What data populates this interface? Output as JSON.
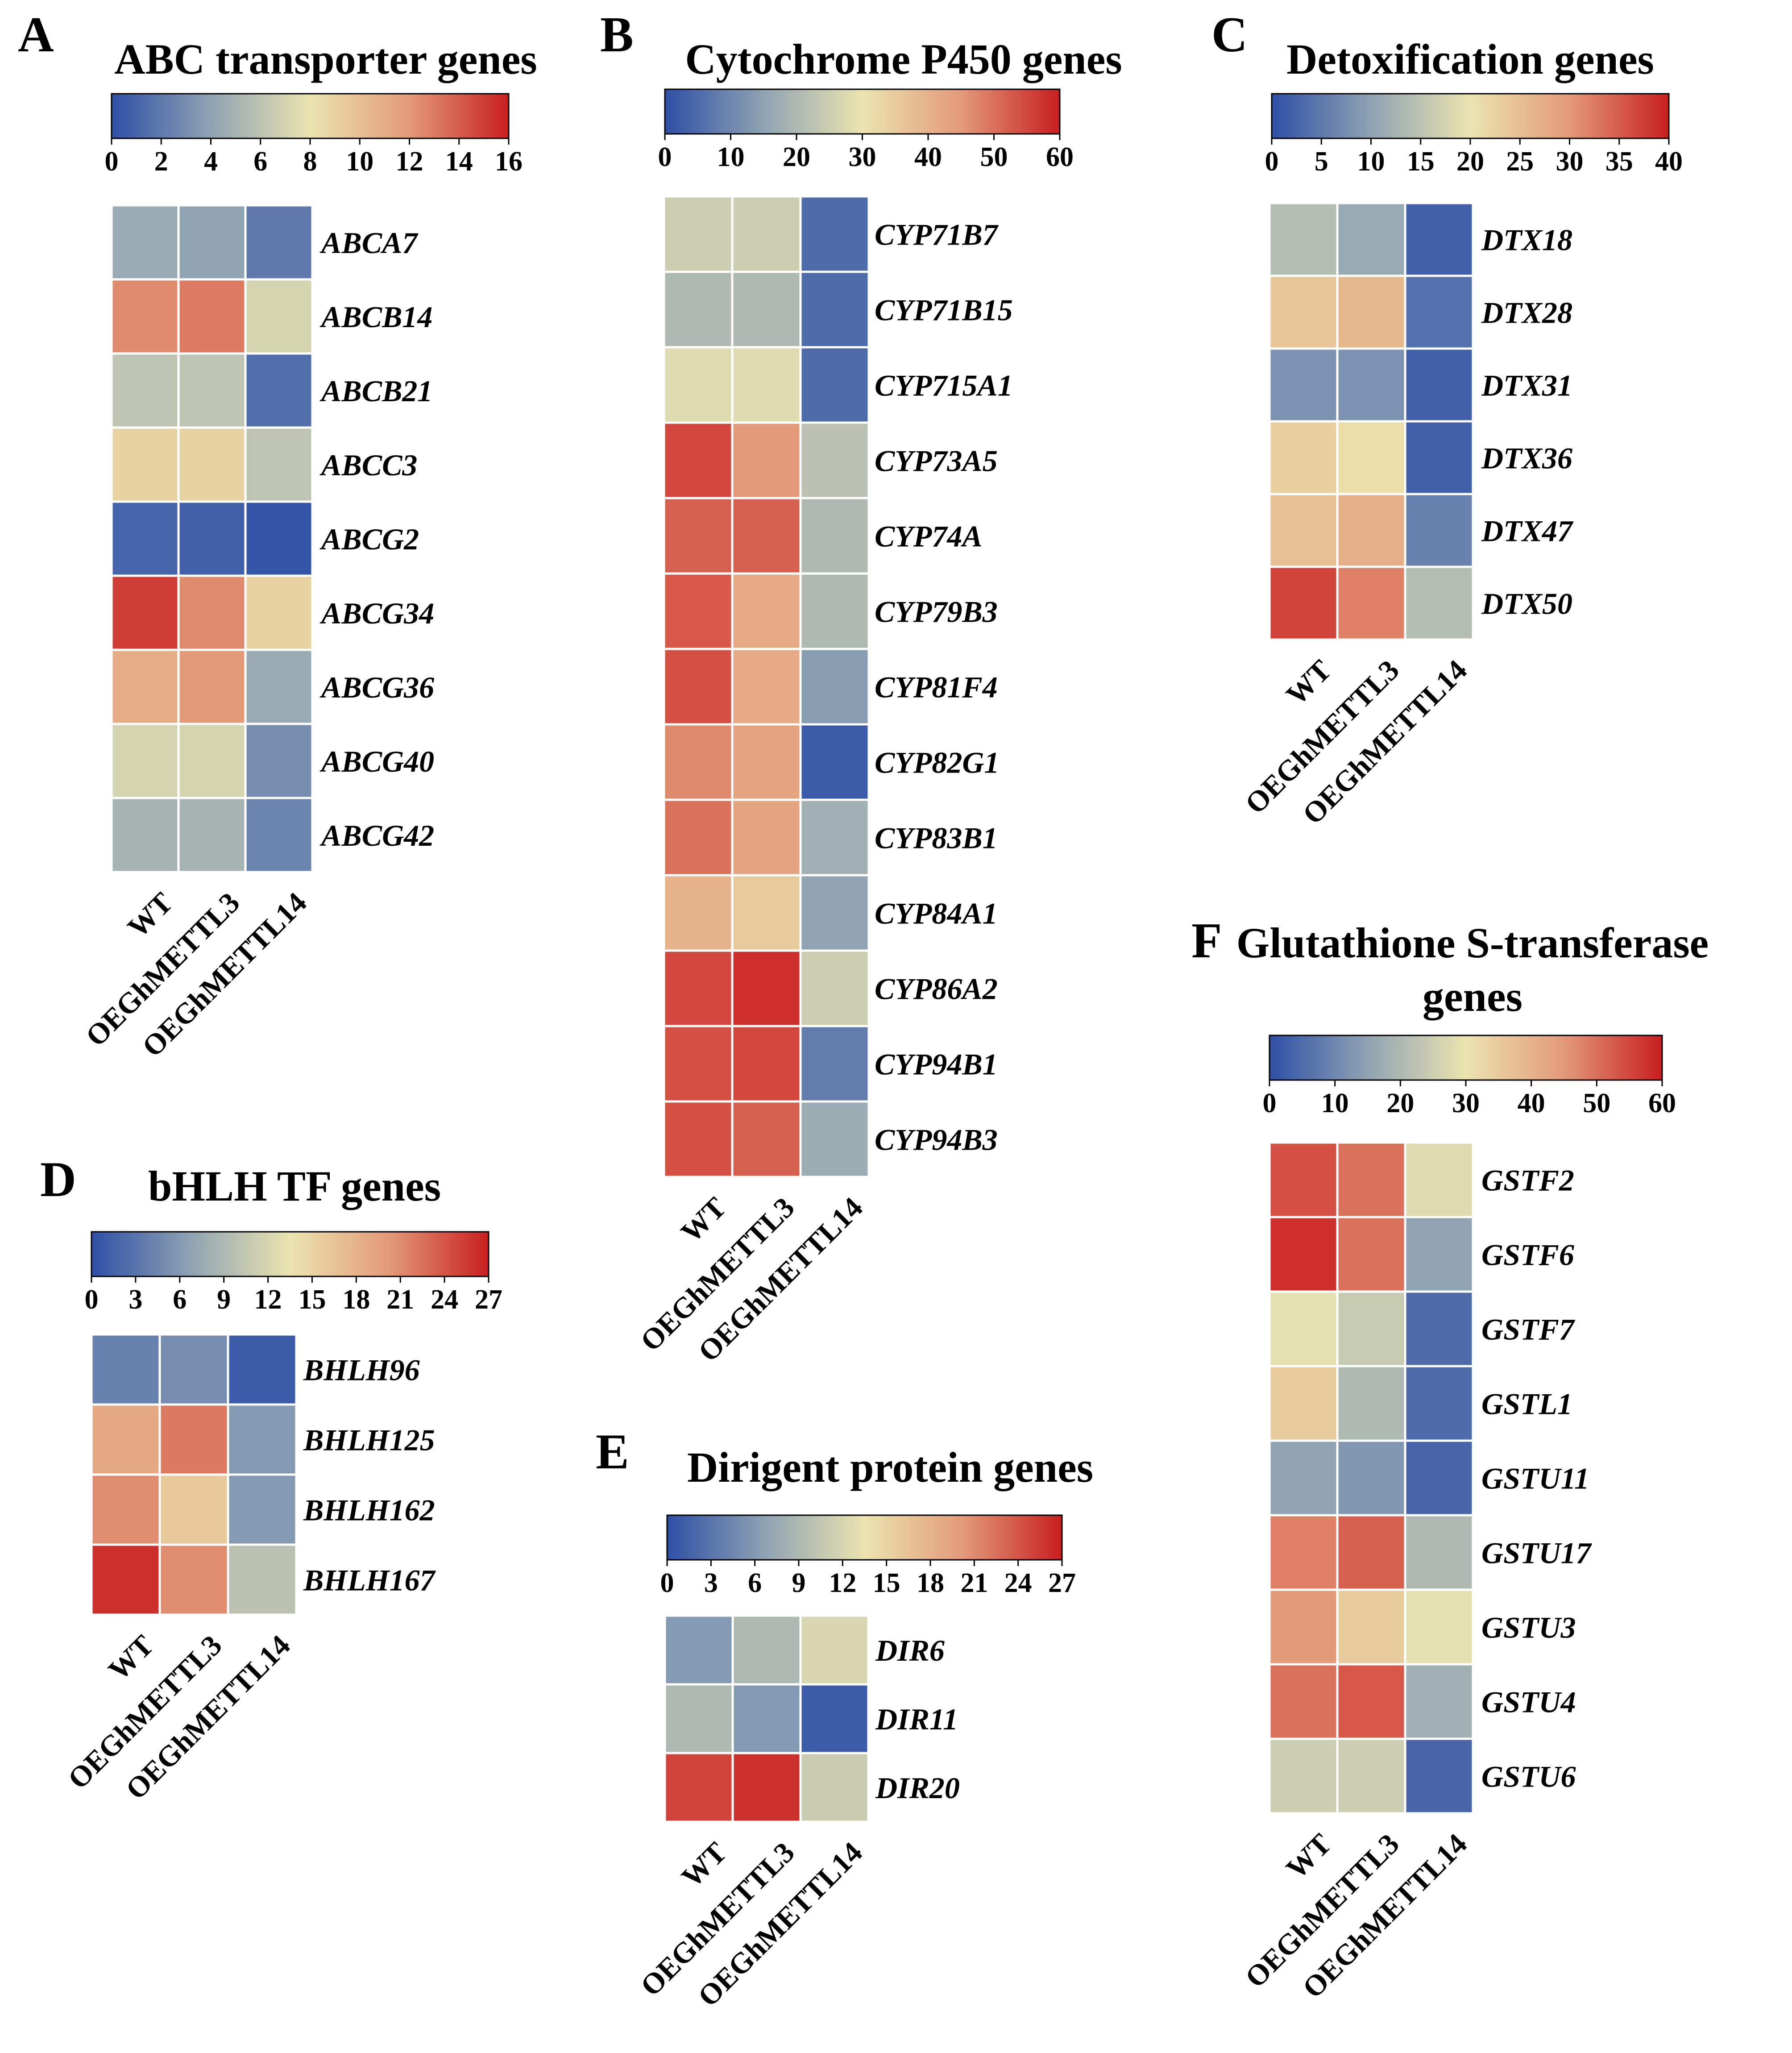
{
  "figure": {
    "sample_names": [
      "WT",
      "OEGhMETTL3",
      "OEGhMETTL14"
    ],
    "colormap": {
      "name": "blue-white-red",
      "stops": [
        "#2e4fa6",
        "#8fa3b3",
        "#ebe4b0",
        "#e39a78",
        "#c81e20"
      ]
    }
  },
  "chart_data": [
    {
      "panel": "A",
      "type": "heatmap",
      "title": "ABC transporter genes",
      "vmin": 0,
      "vmax": 16,
      "ticks": [
        0,
        2,
        4,
        6,
        8,
        10,
        12,
        14,
        16
      ],
      "columns": [
        "WT",
        "OEGhMETTL3",
        "OEGhMETTL14"
      ],
      "rows": [
        {
          "gene": "ABCA7",
          "values": [
            4.5,
            4.0,
            2.0
          ]
        },
        {
          "gene": "ABCB14",
          "values": [
            12.5,
            13.0,
            7.0
          ]
        },
        {
          "gene": "ABCB21",
          "values": [
            6.0,
            6.0,
            1.5
          ]
        },
        {
          "gene": "ABCC3",
          "values": [
            9.0,
            9.0,
            6.0
          ]
        },
        {
          "gene": "ABCG2",
          "values": [
            1.0,
            0.8,
            0.3
          ]
        },
        {
          "gene": "ABCG34",
          "values": [
            15.0,
            12.5,
            9.0
          ]
        },
        {
          "gene": "ABCG36",
          "values": [
            11.0,
            12.0,
            4.5
          ]
        },
        {
          "gene": "ABCG40",
          "values": [
            7.0,
            7.0,
            3.0
          ]
        },
        {
          "gene": "ABCG42",
          "values": [
            5.0,
            5.0,
            2.5
          ]
        }
      ]
    },
    {
      "panel": "B",
      "type": "heatmap",
      "title": "Cytochrome P450 genes",
      "vmin": 0,
      "vmax": 60,
      "ticks": [
        0,
        10,
        20,
        30,
        40,
        50,
        60
      ],
      "columns": [
        "WT",
        "OEGhMETTL3",
        "OEGhMETTL14"
      ],
      "rows": [
        {
          "gene": "CYP71B7",
          "values": [
            25,
            25,
            5
          ]
        },
        {
          "gene": "CYP71B15",
          "values": [
            20,
            20,
            5
          ]
        },
        {
          "gene": "CYP715A1",
          "values": [
            28,
            28,
            5
          ]
        },
        {
          "gene": "CYP73A5",
          "values": [
            55,
            45,
            22
          ]
        },
        {
          "gene": "CYP74A",
          "values": [
            52,
            52,
            20
          ]
        },
        {
          "gene": "CYP79B3",
          "values": [
            53,
            42,
            20
          ]
        },
        {
          "gene": "CYP81F4",
          "values": [
            54,
            42,
            14
          ]
        },
        {
          "gene": "CYP82G1",
          "values": [
            47,
            43,
            2
          ]
        },
        {
          "gene": "CYP83B1",
          "values": [
            50,
            43,
            18
          ]
        },
        {
          "gene": "CYP84A1",
          "values": [
            40,
            35,
            15
          ]
        },
        {
          "gene": "CYP86A2",
          "values": [
            55,
            58,
            25
          ]
        },
        {
          "gene": "CYP94B1",
          "values": [
            54,
            55,
            8
          ]
        },
        {
          "gene": "CYP94B3",
          "values": [
            54,
            52,
            17
          ]
        }
      ]
    },
    {
      "panel": "C",
      "type": "heatmap",
      "title": "Detoxification genes",
      "vmin": 0,
      "vmax": 40,
      "ticks": [
        0,
        5,
        10,
        15,
        20,
        25,
        30,
        35,
        40
      ],
      "columns": [
        "WT",
        "OEGhMETTL3",
        "OEGhMETTL14"
      ],
      "rows": [
        {
          "gene": "DTX18",
          "values": [
            14,
            11,
            2
          ]
        },
        {
          "gene": "DTX28",
          "values": [
            24,
            26,
            4
          ]
        },
        {
          "gene": "DTX31",
          "values": [
            8,
            8,
            2
          ]
        },
        {
          "gene": "DTX36",
          "values": [
            23,
            21,
            2
          ]
        },
        {
          "gene": "DTX47",
          "values": [
            25,
            27,
            6
          ]
        },
        {
          "gene": "DTX50",
          "values": [
            37,
            32,
            14
          ]
        }
      ]
    },
    {
      "panel": "D",
      "type": "heatmap",
      "title": "bHLH TF genes",
      "vmin": 0,
      "vmax": 27,
      "ticks": [
        0,
        3,
        6,
        9,
        12,
        15,
        18,
        21,
        24,
        27
      ],
      "columns": [
        "WT",
        "OEGhMETTL3",
        "OEGhMETTL14"
      ],
      "rows": [
        {
          "gene": "BHLH96",
          "values": [
            4,
            5,
            1
          ]
        },
        {
          "gene": "BHLH125",
          "values": [
            19,
            22,
            6
          ]
        },
        {
          "gene": "BHLH162",
          "values": [
            21,
            16,
            6
          ]
        },
        {
          "gene": "BHLH167",
          "values": [
            26,
            21,
            10
          ]
        }
      ]
    },
    {
      "panel": "E",
      "type": "heatmap",
      "title": "Dirigent protein genes",
      "vmin": 0,
      "vmax": 27,
      "ticks": [
        0,
        3,
        6,
        9,
        12,
        15,
        18,
        21,
        24,
        27
      ],
      "columns": [
        "WT",
        "OEGhMETTL3",
        "OEGhMETTL14"
      ],
      "rows": [
        {
          "gene": "DIR6",
          "values": [
            6,
            9,
            12
          ]
        },
        {
          "gene": "DIR11",
          "values": [
            9,
            6,
            1
          ]
        },
        {
          "gene": "DIR20",
          "values": [
            25,
            26,
            11
          ]
        }
      ]
    },
    {
      "panel": "F",
      "type": "heatmap",
      "title": "Glutathione S-transferase genes",
      "title_lines": [
        "Glutathione S-transferase",
        "genes"
      ],
      "vmin": 0,
      "vmax": 60,
      "ticks": [
        0,
        10,
        20,
        30,
        40,
        50,
        60
      ],
      "columns": [
        "WT",
        "OEGhMETTL3",
        "OEGhMETTL14"
      ],
      "rows": [
        {
          "gene": "GSTF2",
          "values": [
            54,
            50,
            28
          ]
        },
        {
          "gene": "GSTF6",
          "values": [
            58,
            50,
            15
          ]
        },
        {
          "gene": "GSTF7",
          "values": [
            29,
            24,
            5
          ]
        },
        {
          "gene": "GSTL1",
          "values": [
            35,
            20,
            5
          ]
        },
        {
          "gene": "GSTU11",
          "values": [
            15,
            13,
            4
          ]
        },
        {
          "gene": "GSTU17",
          "values": [
            48,
            52,
            20
          ]
        },
        {
          "gene": "GSTU3",
          "values": [
            45,
            35,
            29
          ]
        },
        {
          "gene": "GSTU4",
          "values": [
            50,
            53,
            18
          ]
        },
        {
          "gene": "GSTU6",
          "values": [
            25,
            25,
            4
          ]
        }
      ]
    }
  ]
}
